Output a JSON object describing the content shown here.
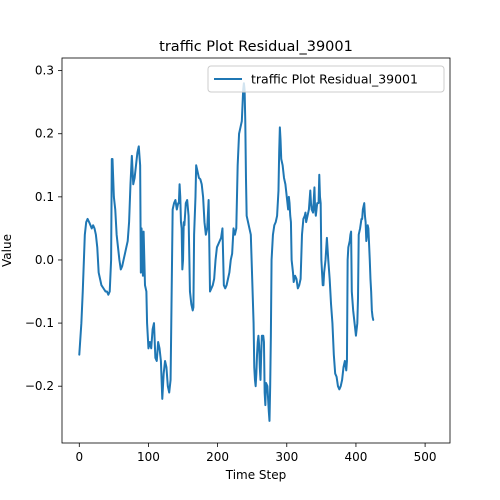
{
  "chart_data": {
    "type": "line",
    "title": "traffic Plot Residual_39001",
    "xlabel": "Time Step",
    "ylabel": "Value",
    "xlim": [
      -25,
      536
    ],
    "ylim": [
      -0.29,
      0.32
    ],
    "xticks": [
      0,
      100,
      200,
      300,
      400,
      500
    ],
    "yticks": [
      -0.2,
      -0.1,
      0.0,
      0.1,
      0.2,
      0.3
    ],
    "xtick_labels": [
      "0",
      "100",
      "200",
      "300",
      "400",
      "500"
    ],
    "ytick_labels": [
      "−0.2",
      "−0.1",
      "0.0",
      "0.1",
      "0.2",
      "0.3"
    ],
    "grid": false,
    "legend_position": "top-right",
    "series": [
      {
        "name": "traffic Plot Residual_39001",
        "color": "#1f77b4",
        "points": [
          [
            0,
            -0.15
          ],
          [
            3,
            -0.1
          ],
          [
            5,
            -0.05
          ],
          [
            8,
            0.04
          ],
          [
            10,
            0.06
          ],
          [
            12,
            0.065
          ],
          [
            15,
            0.058
          ],
          [
            18,
            0.05
          ],
          [
            20,
            0.055
          ],
          [
            22,
            0.05
          ],
          [
            24,
            0.04
          ],
          [
            26,
            0.02
          ],
          [
            28,
            -0.02
          ],
          [
            30,
            -0.03
          ],
          [
            32,
            -0.04
          ],
          [
            35,
            -0.045
          ],
          [
            38,
            -0.05
          ],
          [
            40,
            -0.05
          ],
          [
            42,
            -0.055
          ],
          [
            44,
            -0.05
          ],
          [
            46,
            0.0
          ],
          [
            47,
            0.16
          ],
          [
            48,
            0.16
          ],
          [
            50,
            0.1
          ],
          [
            52,
            0.08
          ],
          [
            54,
            0.04
          ],
          [
            56,
            0.02
          ],
          [
            58,
            0.0
          ],
          [
            60,
            -0.015
          ],
          [
            62,
            -0.01
          ],
          [
            64,
            0.0
          ],
          [
            66,
            0.01
          ],
          [
            68,
            0.02
          ],
          [
            70,
            0.03
          ],
          [
            72,
            0.06
          ],
          [
            74,
            0.12
          ],
          [
            76,
            0.165
          ],
          [
            78,
            0.12
          ],
          [
            80,
            0.13
          ],
          [
            82,
            0.15
          ],
          [
            84,
            0.17
          ],
          [
            86,
            0.18
          ],
          [
            88,
            0.15
          ],
          [
            89,
            -0.02
          ],
          [
            90,
            0.05
          ],
          [
            91,
            0.02
          ],
          [
            92,
            -0.025
          ],
          [
            93,
            0.045
          ],
          [
            95,
            -0.04
          ],
          [
            97,
            -0.05
          ],
          [
            98,
            -0.1
          ],
          [
            100,
            -0.14
          ],
          [
            102,
            -0.13
          ],
          [
            104,
            -0.14
          ],
          [
            106,
            -0.11
          ],
          [
            108,
            -0.1
          ],
          [
            110,
            -0.155
          ],
          [
            112,
            -0.16
          ],
          [
            114,
            -0.13
          ],
          [
            116,
            -0.14
          ],
          [
            118,
            -0.16
          ],
          [
            120,
            -0.22
          ],
          [
            122,
            -0.18
          ],
          [
            124,
            -0.16
          ],
          [
            126,
            -0.17
          ],
          [
            128,
            -0.2
          ],
          [
            130,
            -0.21
          ],
          [
            132,
            -0.19
          ],
          [
            133,
            -0.1
          ],
          [
            135,
            0.08
          ],
          [
            137,
            0.09
          ],
          [
            139,
            0.095
          ],
          [
            141,
            0.08
          ],
          [
            143,
            0.09
          ],
          [
            144,
            0.09
          ],
          [
            145,
            0.12
          ],
          [
            146,
            0.1
          ],
          [
            147,
            0.06
          ],
          [
            148,
            0.05
          ],
          [
            149,
            -0.015
          ],
          [
            150,
            0.0
          ],
          [
            151,
            0.06
          ],
          [
            152,
            0.055
          ],
          [
            154,
            0.09
          ],
          [
            156,
            0.095
          ],
          [
            158,
            0.07
          ],
          [
            160,
            -0.05
          ],
          [
            162,
            -0.07
          ],
          [
            164,
            -0.08
          ],
          [
            165,
            -0.075
          ],
          [
            166,
            0.04
          ],
          [
            168,
            0.1
          ],
          [
            169,
            0.15
          ],
          [
            171,
            0.14
          ],
          [
            173,
            0.13
          ],
          [
            175,
            0.128
          ],
          [
            177,
            0.12
          ],
          [
            179,
            0.1
          ],
          [
            181,
            0.06
          ],
          [
            183,
            0.04
          ],
          [
            185,
            0.05
          ],
          [
            187,
            0.095
          ],
          [
            189,
            -0.05
          ],
          [
            191,
            -0.045
          ],
          [
            193,
            -0.04
          ],
          [
            195,
            -0.03
          ],
          [
            197,
            0.0
          ],
          [
            199,
            0.02
          ],
          [
            201,
            0.025
          ],
          [
            203,
            0.03
          ],
          [
            205,
            0.035
          ],
          [
            207,
            0.05
          ],
          [
            209,
            -0.04
          ],
          [
            211,
            -0.045
          ],
          [
            213,
            -0.04
          ],
          [
            215,
            -0.03
          ],
          [
            217,
            -0.02
          ],
          [
            219,
            0.0
          ],
          [
            221,
            0.01
          ],
          [
            223,
            0.05
          ],
          [
            225,
            0.04
          ],
          [
            227,
            0.05
          ],
          [
            229,
            0.15
          ],
          [
            231,
            0.2
          ],
          [
            233,
            0.21
          ],
          [
            235,
            0.22
          ],
          [
            237,
            0.27
          ],
          [
            238,
            0.28
          ],
          [
            239,
            0.27
          ],
          [
            240,
            0.22
          ],
          [
            241,
            0.13
          ],
          [
            242,
            0.07
          ],
          [
            244,
            0.06
          ],
          [
            246,
            0.05
          ],
          [
            248,
            0.04
          ],
          [
            250,
            -0.03
          ],
          [
            252,
            -0.1
          ],
          [
            253,
            -0.17
          ],
          [
            254,
            -0.19
          ],
          [
            255,
            -0.2
          ],
          [
            256,
            -0.18
          ],
          [
            257,
            -0.15
          ],
          [
            258,
            -0.13
          ],
          [
            259,
            -0.12
          ],
          [
            260,
            -0.135
          ],
          [
            261,
            -0.17
          ],
          [
            262,
            -0.19
          ],
          [
            263,
            -0.15
          ],
          [
            264,
            -0.12
          ],
          [
            266,
            -0.12
          ],
          [
            267,
            -0.13
          ],
          [
            268,
            -0.21
          ],
          [
            269,
            -0.23
          ],
          [
            270,
            -0.195
          ],
          [
            272,
            -0.2
          ],
          [
            274,
            -0.24
          ],
          [
            275,
            -0.255
          ],
          [
            276,
            -0.2
          ],
          [
            277,
            -0.12
          ],
          [
            278,
            0.0
          ],
          [
            280,
            0.04
          ],
          [
            282,
            0.055
          ],
          [
            284,
            0.06
          ],
          [
            286,
            0.07
          ],
          [
            288,
            0.11
          ],
          [
            289,
            0.17
          ],
          [
            290,
            0.21
          ],
          [
            291,
            0.19
          ],
          [
            292,
            0.16
          ],
          [
            294,
            0.15
          ],
          [
            296,
            0.13
          ],
          [
            298,
            0.12
          ],
          [
            300,
            0.1
          ],
          [
            302,
            0.08
          ],
          [
            303,
            0.1
          ],
          [
            304,
            0.09
          ],
          [
            305,
            0.07
          ],
          [
            306,
            0.06
          ],
          [
            307,
            0.0
          ],
          [
            308,
            -0.01
          ],
          [
            309,
            -0.02
          ],
          [
            310,
            -0.035
          ],
          [
            312,
            -0.025
          ],
          [
            314,
            -0.03
          ],
          [
            316,
            -0.045
          ],
          [
            318,
            -0.04
          ],
          [
            320,
            -0.03
          ],
          [
            322,
            0.04
          ],
          [
            324,
            0.065
          ],
          [
            326,
            0.07
          ],
          [
            327,
            0.075
          ],
          [
            328,
            0.06
          ],
          [
            330,
            0.07
          ],
          [
            332,
            0.08
          ],
          [
            334,
            0.11
          ],
          [
            335,
            0.09
          ],
          [
            336,
            0.08
          ],
          [
            338,
            0.075
          ],
          [
            340,
            0.115
          ],
          [
            341,
            0.08
          ],
          [
            342,
            0.07
          ],
          [
            344,
            0.09
          ],
          [
            346,
            0.09
          ],
          [
            347,
            0.135
          ],
          [
            348,
            0.1
          ],
          [
            349,
            0.09
          ],
          [
            350,
            0.0
          ],
          [
            351,
            -0.02
          ],
          [
            352,
            -0.04
          ],
          [
            353,
            -0.04
          ],
          [
            354,
            -0.02
          ],
          [
            355,
            -0.01
          ],
          [
            356,
            0.0
          ],
          [
            358,
            0.035
          ],
          [
            360,
            0.0
          ],
          [
            362,
            -0.03
          ],
          [
            364,
            -0.07
          ],
          [
            366,
            -0.1
          ],
          [
            368,
            -0.15
          ],
          [
            370,
            -0.18
          ],
          [
            372,
            -0.185
          ],
          [
            374,
            -0.2
          ],
          [
            376,
            -0.205
          ],
          [
            378,
            -0.2
          ],
          [
            380,
            -0.19
          ],
          [
            382,
            -0.17
          ],
          [
            384,
            -0.16
          ],
          [
            386,
            -0.175
          ],
          [
            387,
            -0.16
          ],
          [
            388,
            0.0
          ],
          [
            389,
            0.02
          ],
          [
            391,
            0.03
          ],
          [
            392,
            0.04
          ],
          [
            393,
            0.045
          ],
          [
            394,
            -0.05
          ],
          [
            396,
            -0.08
          ],
          [
            398,
            -0.1
          ],
          [
            400,
            -0.12
          ],
          [
            402,
            -0.1
          ],
          [
            403,
            -0.06
          ],
          [
            404,
            0.04
          ],
          [
            405,
            0.045
          ],
          [
            406,
            0.05
          ],
          [
            408,
            0.065
          ],
          [
            409,
            0.065
          ],
          [
            410,
            0.08
          ],
          [
            411,
            0.085
          ],
          [
            412,
            0.09
          ],
          [
            413,
            0.07
          ],
          [
            414,
            0.06
          ],
          [
            415,
            0.03
          ],
          [
            416,
            0.04
          ],
          [
            417,
            0.055
          ],
          [
            418,
            0.05
          ],
          [
            420,
            0.0
          ],
          [
            421,
            -0.03
          ],
          [
            422,
            -0.05
          ],
          [
            423,
            -0.08
          ],
          [
            424,
            -0.09
          ],
          [
            425,
            -0.095
          ]
        ]
      }
    ]
  }
}
